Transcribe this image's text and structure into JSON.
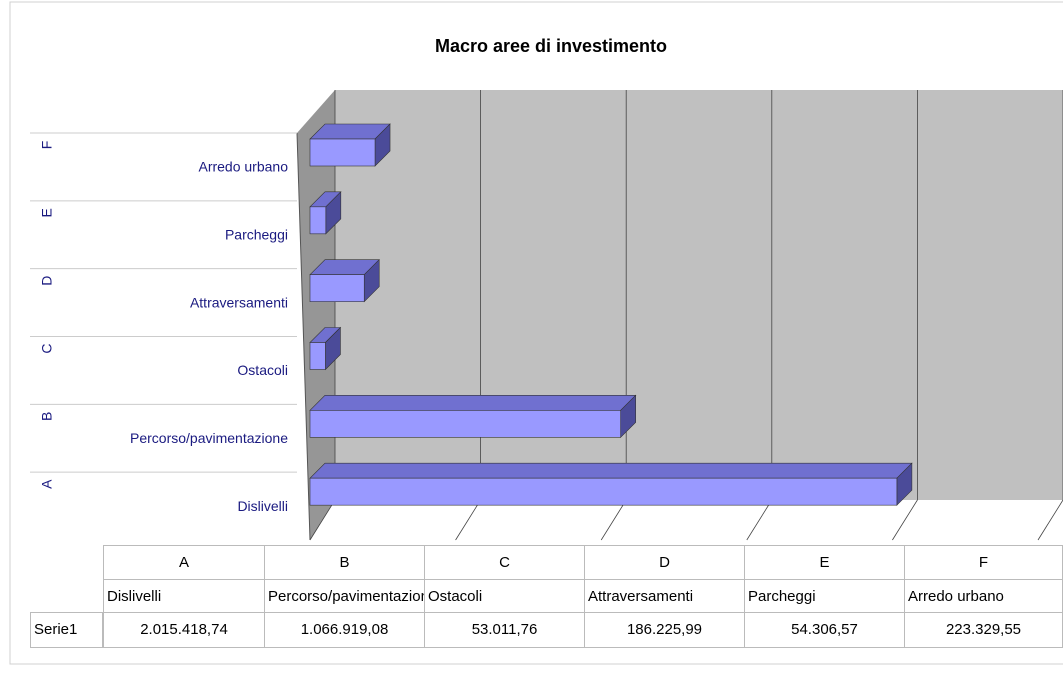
{
  "chart_data": {
    "type": "bar3d_horizontal",
    "title": "Macro aree di investimento",
    "categories": [
      "A",
      "B",
      "C",
      "D",
      "E",
      "F"
    ],
    "labels": [
      "Dislivelli",
      "Percorso/pavimentazione",
      "Ostacoli",
      "Attraversamenti",
      "Parcheggi",
      "Arredo urbano"
    ],
    "series": [
      {
        "name": "Serie1",
        "color": "#9999ff",
        "values": [
          2015418.74,
          1066919.08,
          53011.76,
          186225.99,
          54306.57,
          223329.55
        ],
        "value_labels": [
          "2.015.418,74",
          "1.066.919,08",
          "53.011,76",
          "186.225,99",
          "54.306,57",
          "223.329,55"
        ]
      }
    ],
    "xlim": [
      0,
      2500000
    ],
    "xticks": [
      0,
      500000,
      1000000,
      1500000,
      2000000,
      2500000
    ],
    "grid": true
  }
}
